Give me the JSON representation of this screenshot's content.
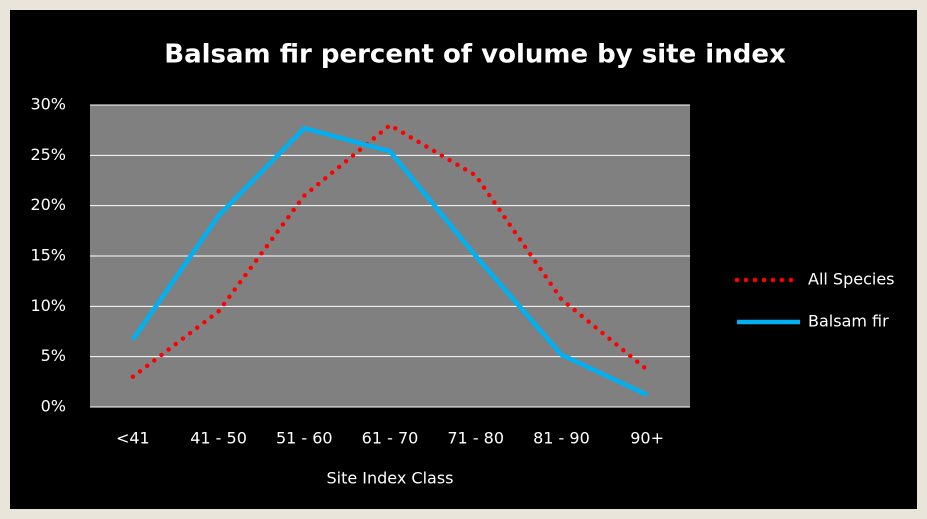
{
  "chart_data": {
    "type": "line",
    "title": "Balsam fir percent of volume by site index",
    "x_label": "Site Index Class",
    "categories": [
      "<41",
      "41 - 50",
      "51 - 60",
      "61 - 70",
      "71 - 80",
      "81 - 90",
      "90+"
    ],
    "series": [
      {
        "name": "All Species",
        "color": "#ff0000",
        "style": "dotted",
        "values": [
          3.0,
          9.5,
          21,
          28,
          23,
          10.7,
          3.7
        ]
      },
      {
        "name": "Balsam fir",
        "color": "#00b0f0",
        "style": "solid",
        "values": [
          6.7,
          19,
          27.7,
          25.4,
          15,
          5.2,
          1.2
        ]
      }
    ],
    "ylim": [
      0,
      30
    ],
    "yticks": [
      {
        "value": 0,
        "label": "0%"
      },
      {
        "value": 5,
        "label": "5%"
      },
      {
        "value": 10,
        "label": "10%"
      },
      {
        "value": 15,
        "label": "15%"
      },
      {
        "value": 20,
        "label": "20%"
      },
      {
        "value": 25,
        "label": "25%"
      },
      {
        "value": 30,
        "label": "30%"
      }
    ],
    "grid": true,
    "legend": "right"
  }
}
